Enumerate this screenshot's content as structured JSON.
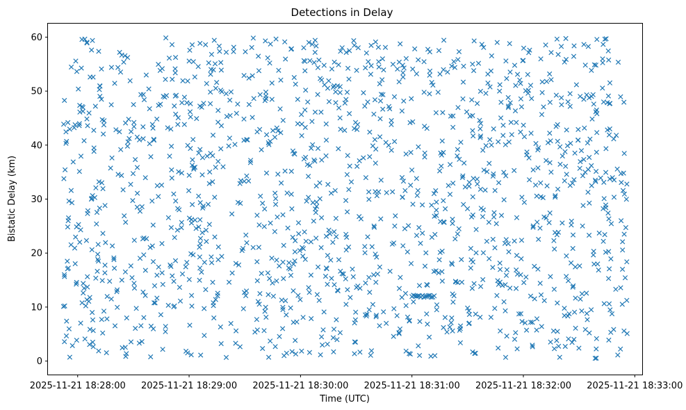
{
  "chart_data": {
    "type": "scatter",
    "title": "Detections in Delay",
    "xlabel": "Time (UTC)",
    "ylabel": "Bistatic Delay (km)",
    "marker": "x",
    "color": "#1f77b4",
    "grid": false,
    "legend": "none",
    "x_axis": {
      "type": "datetime",
      "min": "2025-11-21 18:27:44",
      "max": "2025-11-21 18:33:04",
      "ticks": [
        "2025-11-21 18:28:00",
        "2025-11-21 18:29:00",
        "2025-11-21 18:30:00",
        "2025-11-21 18:31:00",
        "2025-11-21 18:32:00",
        "2025-11-21 18:33:00"
      ]
    },
    "y_axis": {
      "min": -2.5,
      "max": 62.5,
      "ticks": [
        "0",
        "10",
        "20",
        "30",
        "40",
        "50",
        "60"
      ]
    },
    "point_count": 1500,
    "x_range": [
      "2025-11-21 18:27:52",
      "2025-11-21 18:32:56"
    ],
    "y_range": [
      0.5,
      60
    ],
    "cluster": {
      "x_range": [
        "2025-11-21 18:31:00",
        "2025-11-21 18:31:12"
      ],
      "y": 12
    }
  }
}
